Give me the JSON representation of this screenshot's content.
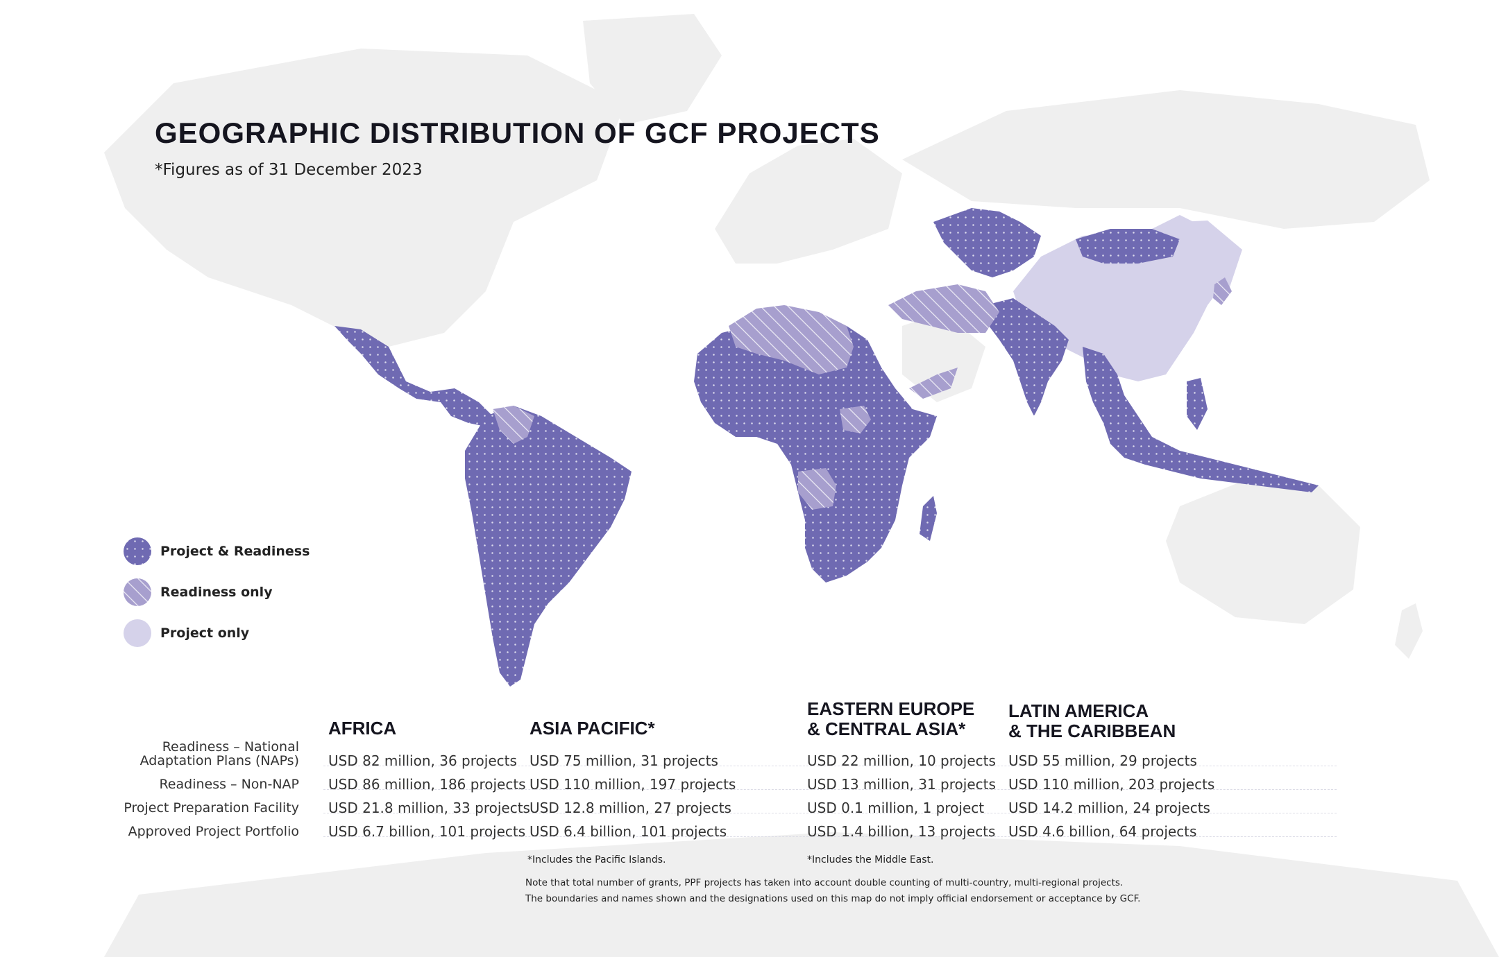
{
  "title": "GEOGRAPHIC DISTRIBUTION OF GCF PROJECTS",
  "subtitle": "*Figures as of 31 December 2023",
  "colors": {
    "project_and_readiness": "#6f6ab2",
    "readiness_only": "#a79fce",
    "project_only": "#d5d2ea",
    "background_land": "#eeeeee"
  },
  "legend": [
    {
      "label": "Project & Readiness",
      "pattern": "dotted",
      "color": "#6f6ab2"
    },
    {
      "label": "Readiness only",
      "pattern": "hatched",
      "color": "#a79fce"
    },
    {
      "label": "Project only",
      "pattern": "solid",
      "color": "#d5d2ea"
    }
  ],
  "table": {
    "row_labels": [
      [
        "Readiness – National",
        "Adaptation Plans (NAPs)"
      ],
      "Readiness – Non-NAP",
      "Project Preparation Facility",
      "Approved Project Portfolio"
    ],
    "regions": [
      {
        "heading": [
          "AFRICA"
        ],
        "values": [
          "USD 82 million, 36 projects",
          "USD 86 million, 186 projects",
          "USD 21.8 million, 33 projects",
          "USD 6.7 billion, 101 projects"
        ]
      },
      {
        "heading": [
          "ASIA PACIFIC*"
        ],
        "values": [
          "USD 75 million, 31 projects",
          "USD  110 million, 197 projects",
          "USD 12.8 million, 27 projects",
          "USD 6.4 billion, 101 projects"
        ],
        "footnote": "*Includes the Pacific Islands."
      },
      {
        "heading": [
          "EASTERN EUROPE",
          "& CENTRAL ASIA*"
        ],
        "values": [
          "USD 22 million, 10 projects",
          "USD  13 million, 31 projects",
          "USD  0.1 million, 1 project",
          "USD 1.4 billion, 13 projects"
        ],
        "footnote": "*Includes the Middle East."
      },
      {
        "heading": [
          "LATIN AMERICA",
          "& THE CARIBBEAN"
        ],
        "values": [
          "USD 55 million, 29 projects",
          "USD 110 million, 203 projects",
          "USD 14.2 million, 24 projects",
          "USD 4.6 billion, 64 projects"
        ]
      }
    ]
  },
  "note": [
    "Note that total number of grants, PPF projects has taken into account double counting of multi-country, multi-regional projects.",
    "The boundaries and names shown and the designations used on this map do not imply official endorsement or acceptance by GCF."
  ]
}
